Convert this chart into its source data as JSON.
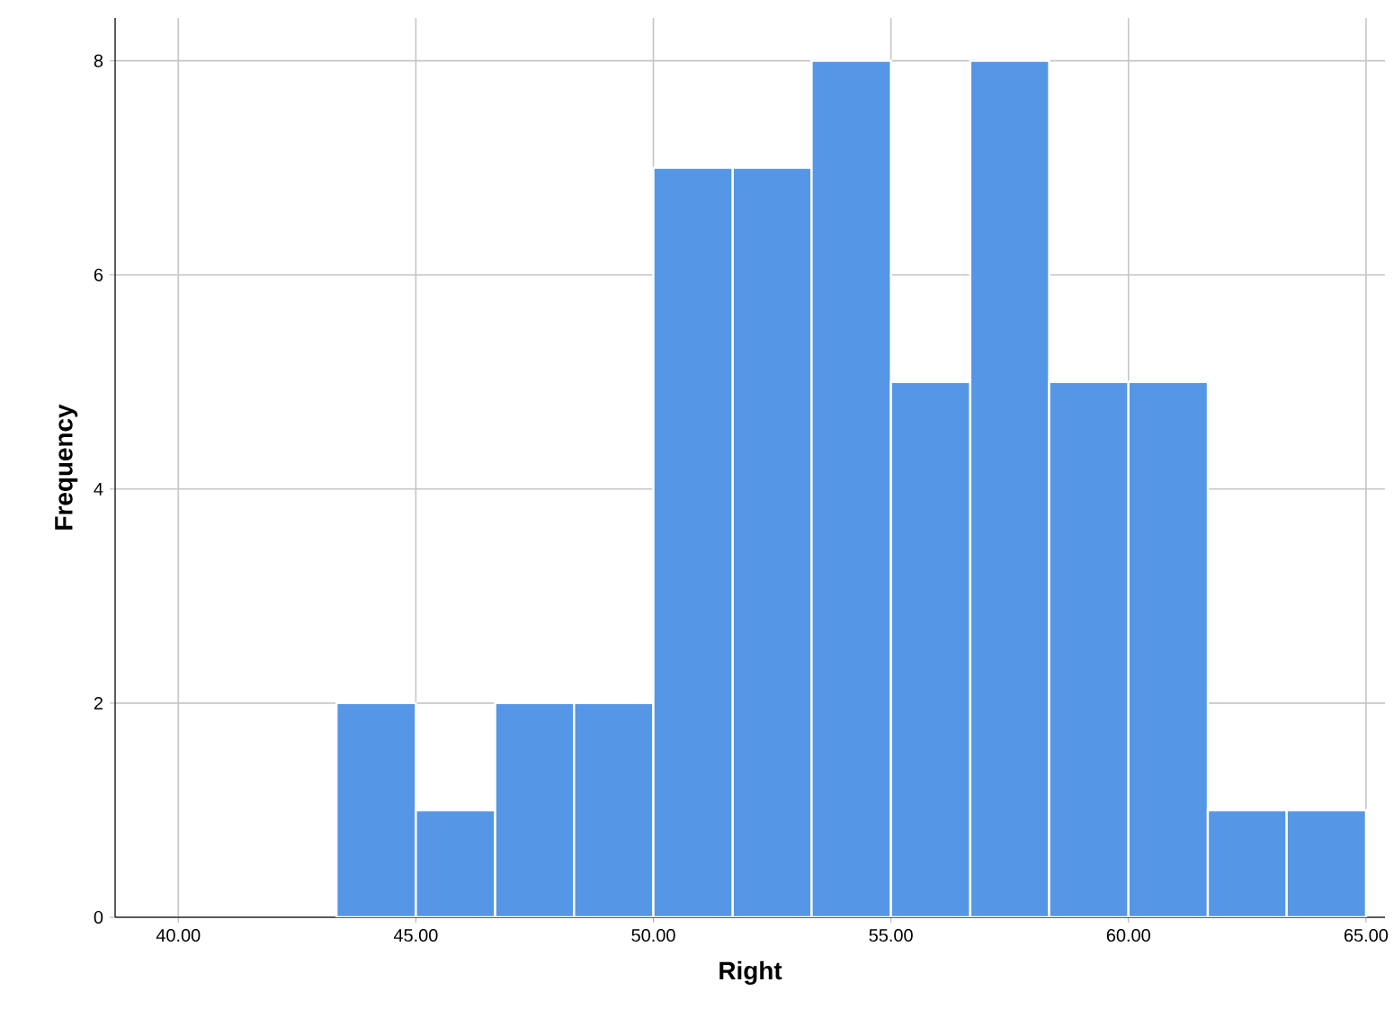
{
  "chart_data": {
    "type": "histogram",
    "xlabel": "Right",
    "ylabel": "Frequency",
    "bins": [
      43.33,
      45,
      46.67,
      48.33,
      50,
      51.67,
      53.33,
      55,
      56.67,
      58.33,
      60,
      61.67,
      63.33,
      65
    ],
    "values": [
      2,
      1,
      2,
      2,
      7,
      7,
      8,
      5,
      8,
      5,
      5,
      1,
      1
    ],
    "color": "#5596e6",
    "xlim": [
      38.67,
      65.4
    ],
    "ylim": [
      0,
      8.4
    ],
    "xticks": [
      {
        "value": 40,
        "label": "40.00"
      },
      {
        "value": 45,
        "label": "45.00"
      },
      {
        "value": 50,
        "label": "50.00"
      },
      {
        "value": 55,
        "label": "55.00"
      },
      {
        "value": 60,
        "label": "60.00"
      },
      {
        "value": 65,
        "label": "65.00"
      }
    ],
    "yticks": [
      0,
      2,
      4,
      6,
      8
    ],
    "grid": true
  }
}
